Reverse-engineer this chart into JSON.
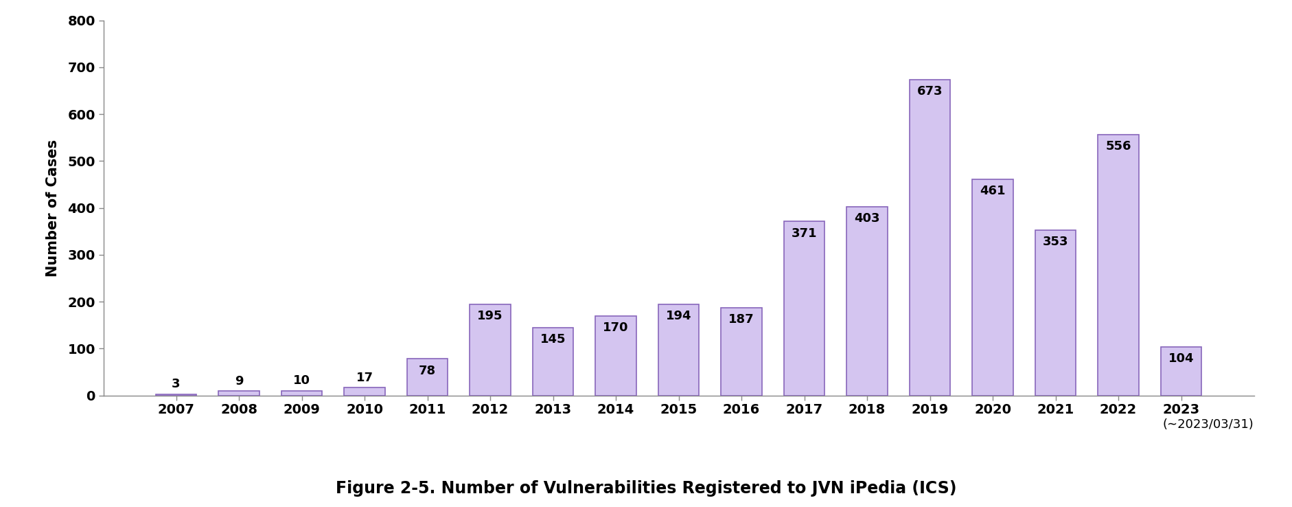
{
  "years": [
    "2007",
    "2008",
    "2009",
    "2010",
    "2011",
    "2012",
    "2013",
    "2014",
    "2015",
    "2016",
    "2017",
    "2018",
    "2019",
    "2020",
    "2021",
    "2022",
    "2023"
  ],
  "values": [
    3,
    9,
    10,
    17,
    78,
    195,
    145,
    170,
    194,
    187,
    371,
    403,
    673,
    461,
    353,
    556,
    104
  ],
  "bar_color": "#d4c5f0",
  "bar_edgecolor": "#8866bb",
  "ylim": [
    0,
    800
  ],
  "yticks": [
    0,
    100,
    200,
    300,
    400,
    500,
    600,
    700,
    800
  ],
  "ylabel": "Number of Cases",
  "title": "Figure 2-5. Number of Vulnerabilities Registered to JVN iPedia (ICS)",
  "note": "(∼2023/03/31)",
  "title_fontsize": 17,
  "ylabel_fontsize": 15,
  "tick_fontsize": 14,
  "label_fontsize": 13,
  "note_fontsize": 13,
  "background_color": "#ffffff"
}
